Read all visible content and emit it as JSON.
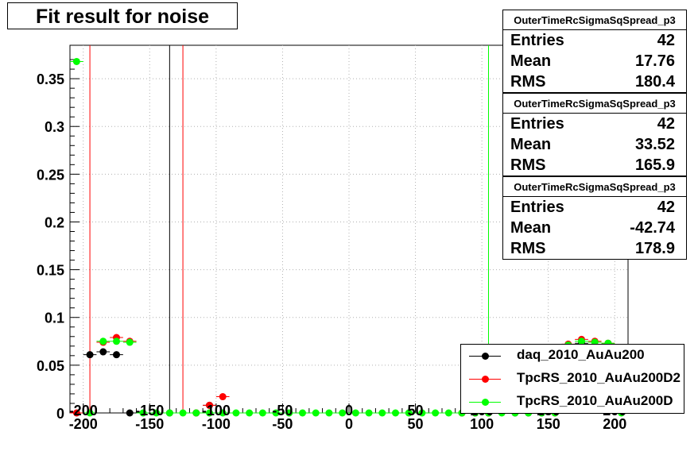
{
  "title": "Fit result for noise",
  "colors": {
    "daq": "#000000",
    "rs2": "#ff0000",
    "rsd": "#00ff00"
  },
  "stats": [
    {
      "name": "OuterTimeRcSigmaSqSpread_p3",
      "rows": [
        {
          "label": "Entries",
          "value": "42"
        },
        {
          "label": "Mean",
          "value": "17.76"
        },
        {
          "label": "RMS",
          "value": "180.4"
        }
      ]
    },
    {
      "name": "OuterTimeRcSigmaSqSpread_p3",
      "rows": [
        {
          "label": "Entries",
          "value": "42"
        },
        {
          "label": "Mean",
          "value": "33.52"
        },
        {
          "label": "RMS",
          "value": "165.9"
        }
      ]
    },
    {
      "name": "OuterTimeRcSigmaSqSpread_p3",
      "rows": [
        {
          "label": "Entries",
          "value": "42"
        },
        {
          "label": "Mean",
          "value": "-42.74"
        },
        {
          "label": "RMS",
          "value": "178.9"
        }
      ]
    }
  ],
  "legend": [
    {
      "label": "daq_2010_AuAu200",
      "color": "#000000"
    },
    {
      "label": "TpcRS_2010_AuAu200D2",
      "color": "#ff0000"
    },
    {
      "label": "TpcRS_2010_AuAu200D",
      "color": "#00ff00"
    }
  ],
  "chart_data": {
    "type": "scatter",
    "title": "Fit result for noise",
    "xlim": [
      -210,
      210
    ],
    "ylim": [
      0,
      0.385
    ],
    "x_ticks": [
      -200,
      -150,
      -100,
      -50,
      0,
      50,
      100,
      150,
      200
    ],
    "y_ticks": [
      0.05,
      0.1,
      0.15,
      0.2,
      0.25,
      0.3,
      0.35
    ],
    "y_tick_labels": [
      "0.05",
      "0.1",
      "0.15",
      "0.2",
      "0.25",
      "0.3",
      "0.35"
    ],
    "y_zero_label": "0",
    "overlay_x_labels": [
      "-200",
      "-150",
      "-100",
      "-50",
      "0",
      "50",
      "100",
      "150",
      "200"
    ],
    "grid": true,
    "bin_half_width": 5,
    "vertical_lines": [
      {
        "x": -135,
        "color": "#000000"
      },
      {
        "x": -195,
        "color": "#ff0000"
      },
      {
        "x": -125,
        "color": "#ff0000"
      },
      {
        "x": 105,
        "color": "#00ff00"
      }
    ],
    "series": [
      {
        "name": "daq_2010_AuAu200",
        "color": "#000000",
        "x": [
          -195,
          -185,
          -175,
          -165,
          -135,
          -115,
          -105,
          85,
          95,
          105,
          125,
          135,
          145,
          165,
          175,
          185,
          195
        ],
        "y": [
          0.061,
          0.064,
          0.061,
          0,
          0,
          0,
          0.008,
          0,
          0,
          0,
          0,
          0,
          0,
          0.07,
          0.073,
          0.07,
          0.072
        ]
      },
      {
        "name": "TpcRS_2010_AuAu200D2",
        "color": "#ff0000",
        "x": [
          -205,
          -185,
          -175,
          -165,
          -115,
          -105,
          -95,
          85,
          95,
          105,
          155,
          165,
          175,
          185,
          195
        ],
        "y": [
          0,
          0.074,
          0.079,
          0.075,
          0,
          0.008,
          0.017,
          0,
          0,
          0,
          0,
          0.072,
          0.077,
          0.075,
          0.073
        ]
      },
      {
        "name": "TpcRS_2010_AuAu200D",
        "color": "#00ff00",
        "x": [
          -205,
          -195,
          -185,
          -175,
          -165,
          -155,
          -145,
          -135,
          -125,
          -115,
          -105,
          -95,
          -85,
          -75,
          -65,
          -55,
          -45,
          -35,
          -25,
          -15,
          -5,
          5,
          15,
          25,
          35,
          45,
          55,
          65,
          75,
          85,
          95,
          105,
          115,
          125,
          135,
          145,
          155,
          165,
          175,
          185,
          195,
          205
        ],
        "y": [
          0.368,
          0,
          0.075,
          0.075,
          0.074,
          0,
          0,
          0,
          0,
          0,
          0,
          0,
          0,
          0,
          0,
          0,
          0,
          0,
          0,
          0,
          0,
          0,
          0,
          0,
          0,
          0,
          0,
          0,
          0,
          0,
          0,
          0,
          0,
          0,
          0,
          0,
          0,
          0.071,
          0.075,
          0.074,
          0.073,
          0
        ]
      }
    ]
  }
}
